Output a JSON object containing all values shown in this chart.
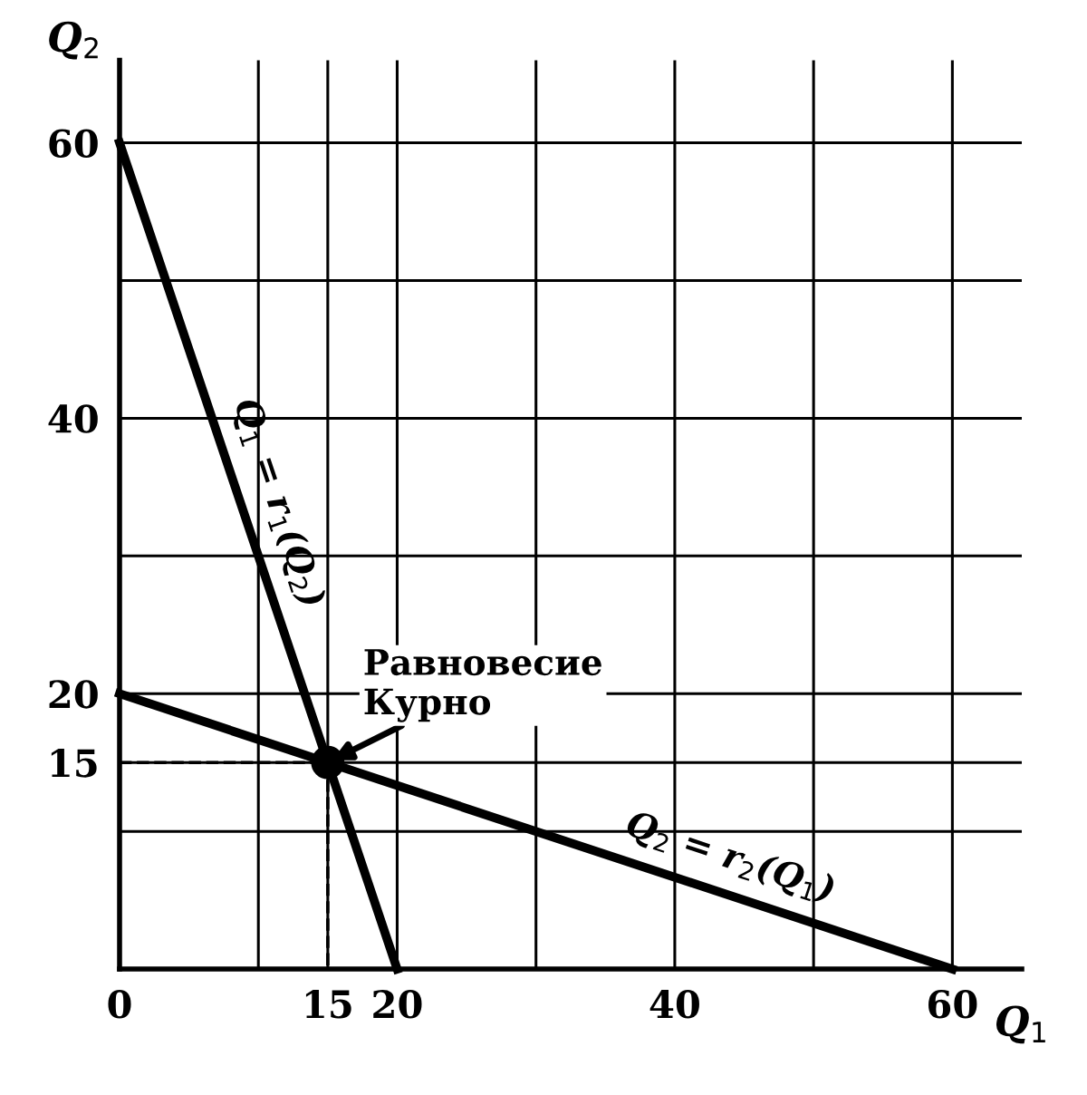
{
  "chart_data": {
    "type": "line",
    "xlabel": "Q$_{1}$",
    "ylabel": "Q$_{2}$",
    "xlim": [
      0,
      65
    ],
    "ylim": [
      0,
      66
    ],
    "xticks": [
      0,
      {
        "value": 10,
        "label": null
      },
      15,
      20,
      {
        "value": 30,
        "label": null
      },
      40,
      {
        "value": 50,
        "label": null
      },
      60
    ],
    "yticks": [
      {
        "value": 10,
        "label": null
      },
      15,
      20,
      {
        "value": 30,
        "label": null
      },
      40,
      {
        "value": 50,
        "label": null
      },
      60
    ],
    "grid": true,
    "series": [
      {
        "name": "Q$_{1}$ = r$_{1}$(Q$_{2}$)",
        "color": "#000000",
        "x": [
          0,
          20
        ],
        "values": [
          60,
          0
        ],
        "line_style": "solid"
      },
      {
        "name": "Q$_{2}$ = r$_{2}$(Q$_{1}$)",
        "color": "#000000",
        "x": [
          0,
          60
        ],
        "values": [
          20,
          0
        ],
        "line_style": "solid"
      },
      {
        "color": "#000000",
        "x": [
          0,
          15,
          15
        ],
        "values": [
          15,
          15,
          0
        ],
        "line_style": "dashed"
      },
      {
        "type": "scatter",
        "color": "#000000",
        "x": [
          15
        ],
        "values": [
          15
        ],
        "marker": "circle"
      }
    ],
    "annotations": [
      {
        "text": "Равновесие\nКурно",
        "x": 15,
        "y": 15
      }
    ]
  }
}
